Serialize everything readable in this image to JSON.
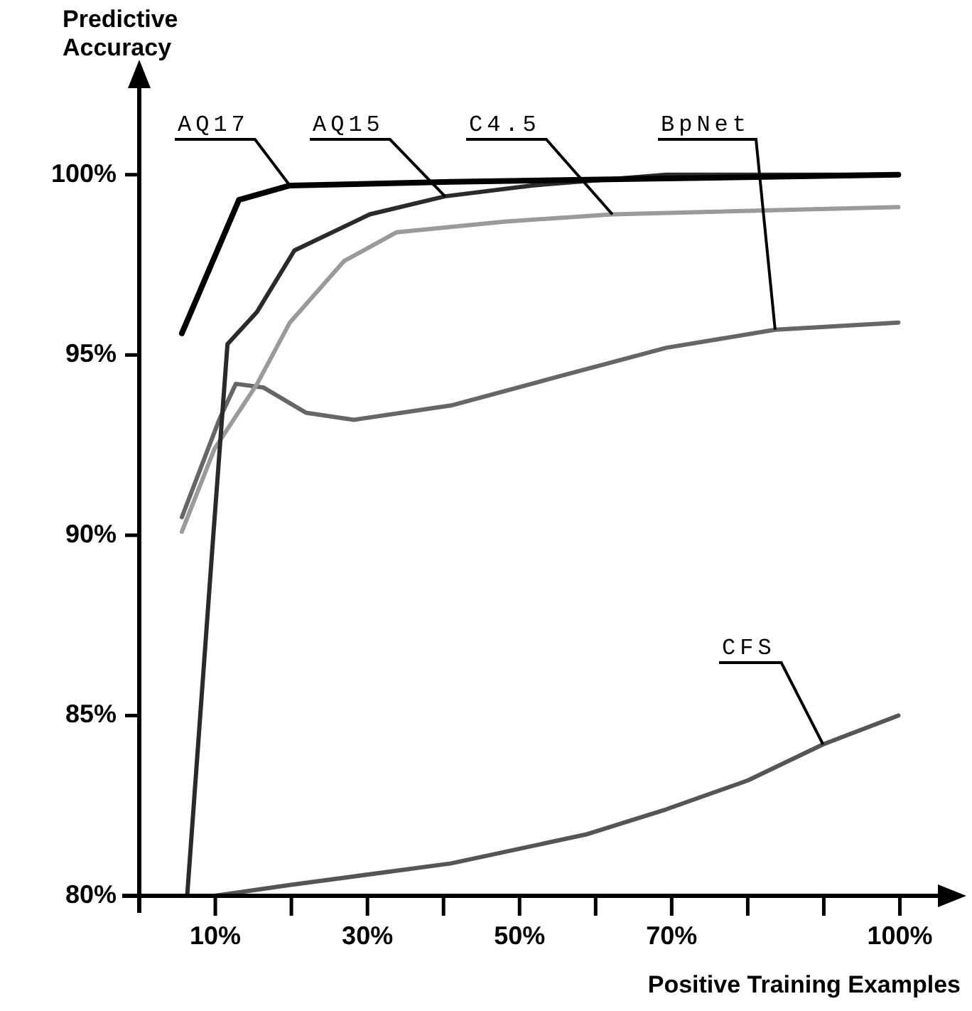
{
  "chart_data": {
    "type": "line",
    "xlabel": "Positive Training Examples",
    "ylabel": "Predictive Accuracy",
    "xlim": [
      0,
      105
    ],
    "ylim": [
      80,
      102.4
    ],
    "xticks": [
      {
        "value": 10,
        "label": "10%"
      },
      {
        "value": 20,
        "label": null
      },
      {
        "value": 30,
        "label": "30%"
      },
      {
        "value": 40,
        "label": null
      },
      {
        "value": 50,
        "label": "50%"
      },
      {
        "value": 60,
        "label": null
      },
      {
        "value": 70,
        "label": "70%"
      },
      {
        "value": 80,
        "label": null
      },
      {
        "value": 90,
        "label": null
      },
      {
        "value": 100,
        "label": "100%"
      }
    ],
    "yticks": [
      {
        "value": 80,
        "label": "80%"
      },
      {
        "value": 85,
        "label": "85%"
      },
      {
        "value": 90,
        "label": "90%"
      },
      {
        "value": 95,
        "label": "95%"
      },
      {
        "value": 100,
        "label": "100%"
      }
    ],
    "marker": "none",
    "legend": false,
    "series": [
      {
        "name": "AQ17",
        "color": "#000000",
        "x": [
          5.6,
          13.1,
          19.8,
          41,
          99.8
        ],
        "values": [
          95.6,
          99.3,
          99.7,
          99.8,
          100.0
        ]
      },
      {
        "name": "AQ15",
        "color": "#2a2a2a",
        "x": [
          6.3,
          9.7,
          11.6,
          15.5,
          20.4,
          30.3,
          40.2,
          51.6,
          69.3,
          99.8
        ],
        "values": [
          80,
          89.9,
          95.3,
          96.2,
          97.9,
          98.9,
          99.4,
          99.7,
          100.0,
          100.0
        ]
      },
      {
        "name": "C4.5",
        "color": "#9a9a9a",
        "x": [
          5.6,
          9.9,
          15.5,
          19.8,
          26.9,
          33.8,
          48,
          62.2,
          99.8
        ],
        "values": [
          90.1,
          92.4,
          94.2,
          95.9,
          97.6,
          98.4,
          98.7,
          98.9,
          99.1
        ]
      },
      {
        "name": "BpNet",
        "color": "#666666",
        "x": [
          5.6,
          10.5,
          12.7,
          16.3,
          21.9,
          28.2,
          41,
          55.1,
          69.3,
          83.6,
          99.8
        ],
        "values": [
          90.5,
          93.2,
          94.2,
          94.1,
          93.4,
          93.2,
          93.6,
          94.4,
          95.2,
          95.7,
          95.9
        ]
      },
      {
        "name": "CFS",
        "color": "#555555",
        "x": [
          9.9,
          19.8,
          41,
          58.7,
          69.3,
          80,
          89.9,
          99.8
        ],
        "values": [
          80,
          80.3,
          80.9,
          81.7,
          82.4,
          83.2,
          84.2,
          85.0
        ]
      }
    ]
  }
}
